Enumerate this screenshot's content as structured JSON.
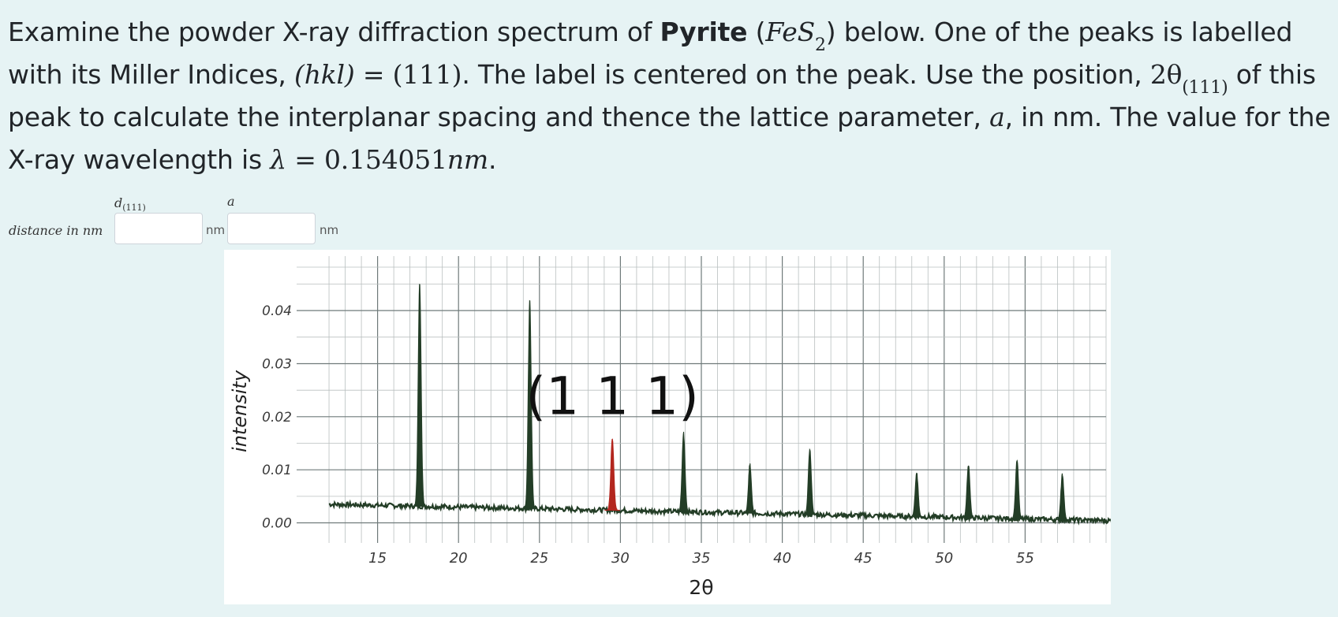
{
  "question": {
    "t1": "Examine the powder X-ray diffraction spectrum of ",
    "mineral": "Pyrite",
    "t2": " (",
    "formula_fe": "FeS",
    "formula_sub": "2",
    "t3": ") below. One of the peaks is labelled with its Miller Indices, ",
    "hkl": "(hkl)",
    "eq1": " = ",
    "hkl_value": "(111)",
    "t4": ". The label is centered on the peak. Use the position, ",
    "two_theta": "2θ",
    "two_theta_sub": "(111)",
    "t5": " of this peak to calculate the interplanar spacing and thence the lattice parameter, ",
    "a_sym": "a",
    "t6": ", in nm. The value for the X-ray wavelength is ",
    "lambda_sym": "λ",
    "eq2": " = ",
    "lambda_value": "0.154051",
    "lambda_unit": "nm",
    "t7": "."
  },
  "answer_form": {
    "row_label": "distance in nm",
    "d_label": "d",
    "d_label_sub": "(111)",
    "a_label": "a",
    "d_value": "",
    "a_value": "",
    "d_unit": "nm",
    "a_unit": "nm"
  },
  "chart_data": {
    "type": "line",
    "xlabel": "2θ",
    "ylabel": "intensity",
    "xlim": [
      10,
      60
    ],
    "ylim": [
      -0.002,
      0.047
    ],
    "x_ticks": [
      15,
      20,
      25,
      30,
      35,
      40,
      45,
      50,
      55
    ],
    "y_ticks": [
      0.0,
      0.01,
      0.02,
      0.03,
      0.04
    ],
    "y_tick_labels": [
      "0.00",
      "0.01",
      "0.02",
      "0.03",
      "0.04"
    ],
    "grid": true,
    "baseline": {
      "start": [
        12.0,
        0.0035
      ],
      "end": [
        62.0,
        0.0003
      ]
    },
    "peaks": [
      {
        "two_theta": 17.6,
        "intensity": 0.045,
        "highlighted": false
      },
      {
        "two_theta": 24.4,
        "intensity": 0.042,
        "highlighted": false
      },
      {
        "two_theta": 29.5,
        "intensity": 0.016,
        "highlighted": true
      },
      {
        "two_theta": 33.9,
        "intensity": 0.017,
        "highlighted": false
      },
      {
        "two_theta": 38.0,
        "intensity": 0.011,
        "highlighted": false
      },
      {
        "two_theta": 41.7,
        "intensity": 0.014,
        "highlighted": false
      },
      {
        "two_theta": 48.3,
        "intensity": 0.0095,
        "highlighted": false
      },
      {
        "two_theta": 51.5,
        "intensity": 0.011,
        "highlighted": false
      },
      {
        "two_theta": 54.5,
        "intensity": 0.0118,
        "highlighted": false
      },
      {
        "two_theta": 57.3,
        "intensity": 0.0092,
        "highlighted": false
      }
    ],
    "annotation": {
      "text": "(1 1 1)",
      "x": 29.5,
      "y": 0.0205
    },
    "colors": {
      "peak": "#233d26",
      "highlight": "#b3261e",
      "grid": "#9ca3a3",
      "axis_text": "#3a3a3a"
    }
  }
}
